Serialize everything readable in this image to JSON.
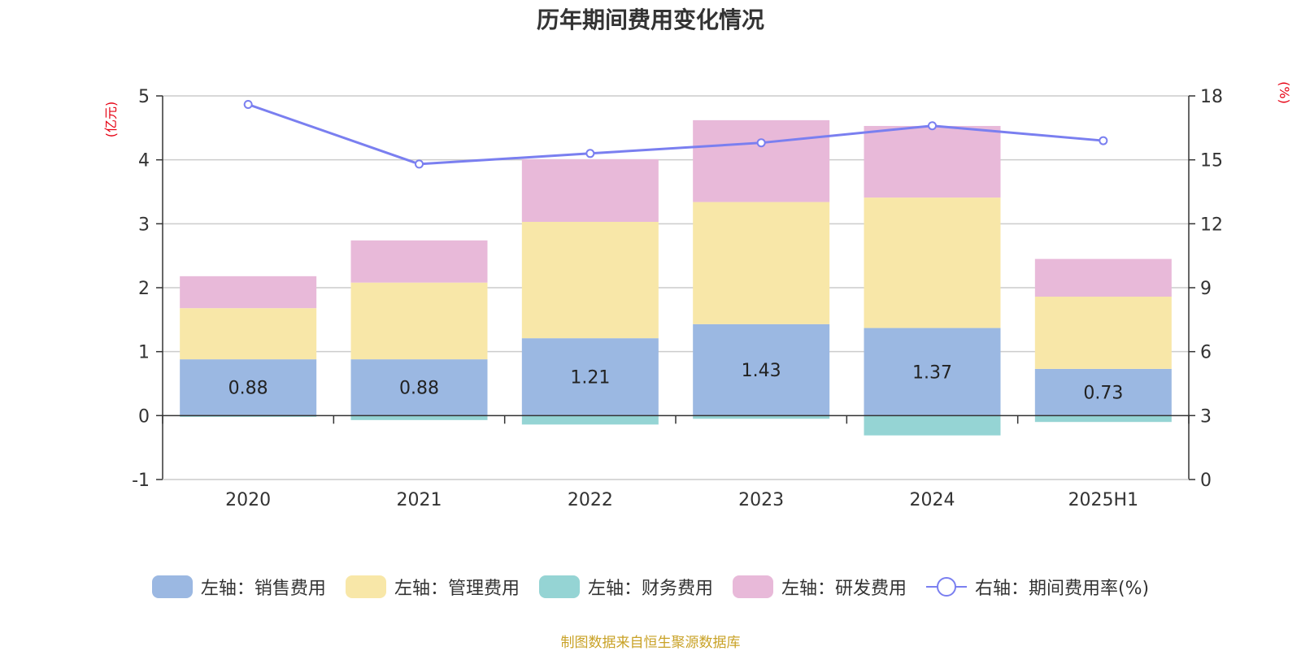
{
  "chart_data": {
    "type": "bar",
    "title": "历年期间费用变化情况",
    "categories": [
      "2020",
      "2021",
      "2022",
      "2023",
      "2024",
      "2025H1"
    ],
    "left_axis": {
      "unit": "(亿元)",
      "ylim": [
        -1,
        5
      ],
      "ticks": [
        "5",
        "4",
        "3",
        "2",
        "1",
        "0",
        "-1"
      ]
    },
    "right_axis": {
      "unit": "(%)",
      "ylim": [
        0,
        18
      ],
      "ticks": [
        "18",
        "15",
        "12",
        "9",
        "6",
        "3",
        "0"
      ]
    },
    "series": [
      {
        "name": "左轴：销售费用",
        "axis": "left",
        "stack": "cost",
        "color": "#9bb8e2",
        "values": [
          0.88,
          0.88,
          1.21,
          1.43,
          1.37,
          0.73
        ],
        "labels": [
          "0.88",
          "0.88",
          "1.21",
          "1.43",
          "1.37",
          "0.73"
        ]
      },
      {
        "name": "左轴：管理费用",
        "axis": "left",
        "stack": "cost",
        "color": "#f8e7a8",
        "values": [
          0.8,
          1.2,
          1.82,
          1.91,
          2.04,
          1.13
        ]
      },
      {
        "name": "左轴：财务费用",
        "axis": "left",
        "stack": "cost",
        "color": "#95d4d4",
        "values": [
          -0.02,
          -0.07,
          -0.14,
          -0.05,
          -0.31,
          -0.1
        ]
      },
      {
        "name": "左轴：研发费用",
        "axis": "left",
        "stack": "cost",
        "color": "#e8b9d9",
        "values": [
          0.5,
          0.66,
          0.98,
          1.28,
          1.12,
          0.59
        ]
      },
      {
        "name": "右轴：期间费用率(%)",
        "axis": "right",
        "type": "line",
        "color": "#7a7ff0",
        "values": [
          17.6,
          14.8,
          15.3,
          15.8,
          16.6,
          15.9
        ]
      }
    ],
    "grid": true,
    "legend_position": "bottom"
  },
  "footer": {
    "source": "制图数据来自恒生聚源数据库"
  }
}
